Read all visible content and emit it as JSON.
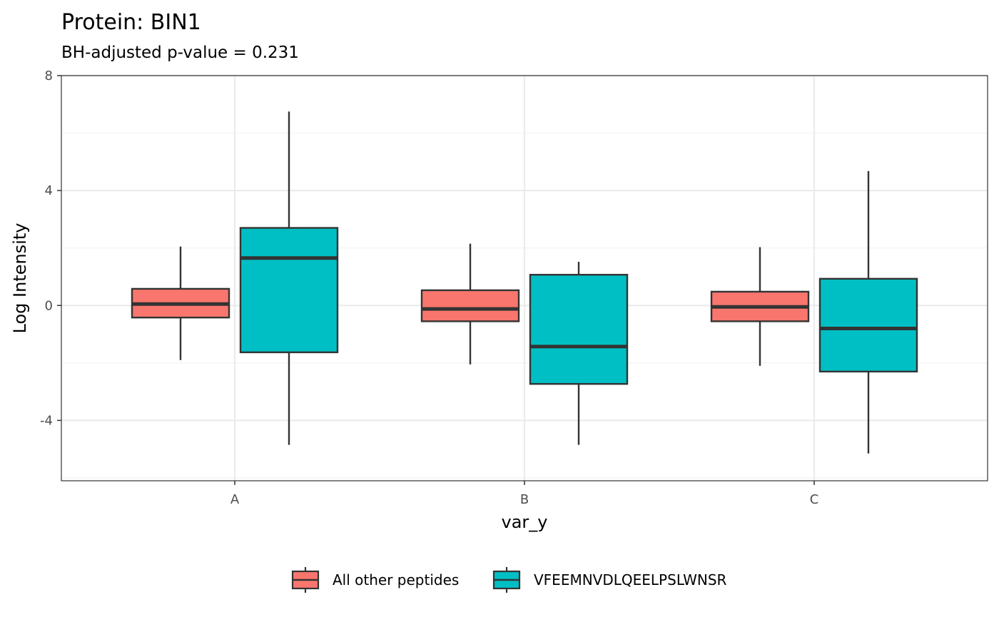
{
  "chart_data": {
    "type": "boxplot",
    "title": "Protein: BIN1",
    "subtitle": "BH-adjusted p-value = 0.231",
    "xlabel": "var_y",
    "ylabel": "Log Intensity",
    "categories": [
      "A",
      "B",
      "C"
    ],
    "ylim": [
      -6.1,
      8.0
    ],
    "yticks": [
      -4,
      0,
      4,
      8
    ],
    "yticklabels": [
      "-4",
      "0",
      "4",
      "8"
    ],
    "grid": true,
    "legend_position": "bottom",
    "series": [
      {
        "name": "All other peptides",
        "color": "#F8766D",
        "boxes": [
          {
            "category": "A",
            "min": -1.9,
            "q1": -0.42,
            "median": 0.05,
            "q3": 0.58,
            "max": 2.05
          },
          {
            "category": "B",
            "min": -2.05,
            "q1": -0.55,
            "median": -0.12,
            "q3": 0.53,
            "max": 2.15
          },
          {
            "category": "C",
            "min": -2.1,
            "q1": -0.55,
            "median": -0.05,
            "q3": 0.48,
            "max": 2.03
          }
        ]
      },
      {
        "name": "VFEEMNVDLQEELPSLWNSR",
        "color": "#00BFC4",
        "boxes": [
          {
            "category": "A",
            "min": -4.85,
            "q1": -1.63,
            "median": 1.65,
            "q3": 2.7,
            "max": 6.75
          },
          {
            "category": "B",
            "min": -4.85,
            "q1": -2.73,
            "median": -1.43,
            "q3": 1.07,
            "max": 1.52
          },
          {
            "category": "C",
            "min": -5.15,
            "q1": -2.3,
            "median": -0.8,
            "q3": 0.93,
            "max": 4.68
          }
        ]
      }
    ]
  }
}
